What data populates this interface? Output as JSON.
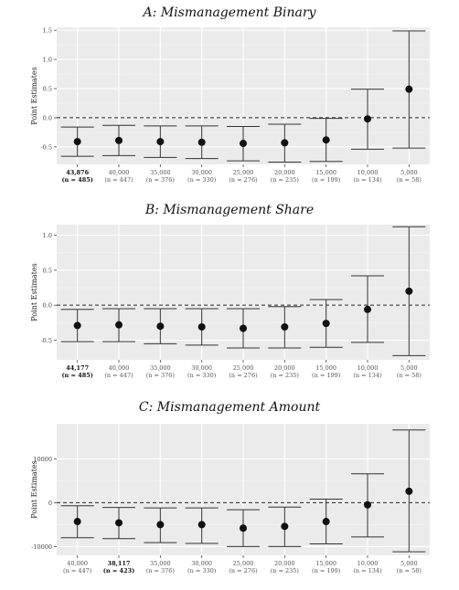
{
  "chart_data": [
    {
      "type": "errorbar",
      "title": "A: Mismanagement Binary",
      "ylabel": "Point Estimates",
      "xlabel": "",
      "ylim": [
        -0.8,
        1.55
      ],
      "yticks": [
        -0.5,
        0.0,
        0.5,
        1.0,
        1.5
      ],
      "ytick_labels": [
        "-0.5",
        "0.0",
        "0.5",
        "1.0",
        "1.5"
      ],
      "reference_line": 0,
      "grid": true,
      "categories": [
        "43,876",
        "40,000",
        "35,000",
        "30,000",
        "25,000",
        "20,000",
        "15,000",
        "10,000",
        "5,000"
      ],
      "n_labels": [
        "(n = 485)",
        "(n = 447)",
        "(n = 376)",
        "(n = 330)",
        "(n = 276)",
        "(n = 235)",
        "(n = 199)",
        "(n = 134)",
        "(n = 58)"
      ],
      "highlight_index": 0,
      "estimates": [
        -0.41,
        -0.39,
        -0.41,
        -0.42,
        -0.44,
        -0.43,
        -0.38,
        -0.02,
        0.49
      ],
      "lower": [
        -0.66,
        -0.65,
        -0.68,
        -0.7,
        -0.74,
        -0.76,
        -0.75,
        -0.54,
        -0.52
      ],
      "upper": [
        -0.16,
        -0.13,
        -0.14,
        -0.14,
        -0.15,
        -0.11,
        -0.01,
        0.49,
        1.49
      ]
    },
    {
      "type": "errorbar",
      "title": "B: Mismanagement Share",
      "ylabel": "Point Estimates",
      "xlabel": "",
      "ylim": [
        -0.78,
        1.15
      ],
      "yticks": [
        -0.5,
        0.0,
        0.5,
        1.0
      ],
      "ytick_labels": [
        "-0.5",
        "0.0",
        "0.5",
        "1.0"
      ],
      "reference_line": 0,
      "grid": true,
      "categories": [
        "44,177",
        "40,000",
        "35,000",
        "30,000",
        "25,000",
        "20,000",
        "15,000",
        "10,000",
        "5,000"
      ],
      "n_labels": [
        "(n = 485)",
        "(n = 447)",
        "(n = 376)",
        "(n = 330)",
        "(n = 276)",
        "(n = 235)",
        "(n = 199)",
        "(n = 134)",
        "(n = 58)"
      ],
      "highlight_index": 0,
      "estimates": [
        -0.29,
        -0.28,
        -0.3,
        -0.31,
        -0.33,
        -0.31,
        -0.26,
        -0.06,
        0.2
      ],
      "lower": [
        -0.52,
        -0.52,
        -0.55,
        -0.57,
        -0.61,
        -0.61,
        -0.6,
        -0.53,
        -0.72
      ],
      "upper": [
        -0.06,
        -0.05,
        -0.05,
        -0.05,
        -0.05,
        -0.02,
        0.08,
        0.42,
        1.12
      ]
    },
    {
      "type": "errorbar",
      "title": "C: Mismanagement Amount",
      "ylabel": "Point Estimates",
      "xlabel": "",
      "ylim": [
        -12000,
        18000
      ],
      "yticks": [
        -10000,
        0,
        10000
      ],
      "ytick_labels": [
        "-10000",
        "0",
        "10000"
      ],
      "reference_line": 0,
      "grid": true,
      "categories": [
        "40,000",
        "38,117",
        "35,000",
        "30,000",
        "25,000",
        "20,000",
        "15,000",
        "10,000",
        "5,000"
      ],
      "n_labels": [
        "(n = 447)",
        "(n = 423)",
        "(n = 376)",
        "(n = 330)",
        "(n = 276)",
        "(n = 235)",
        "(n = 199)",
        "(n = 134)",
        "(n = 58)"
      ],
      "highlight_index": 1,
      "estimates": [
        -4300,
        -4600,
        -5000,
        -5000,
        -5800,
        -5400,
        -4300,
        -500,
        2600
      ],
      "lower": [
        -8000,
        -8200,
        -9100,
        -9300,
        -10000,
        -10000,
        -9400,
        -7800,
        -11200
      ],
      "upper": [
        -700,
        -1100,
        -1200,
        -1200,
        -1600,
        -1000,
        800,
        6600,
        16600
      ]
    }
  ]
}
